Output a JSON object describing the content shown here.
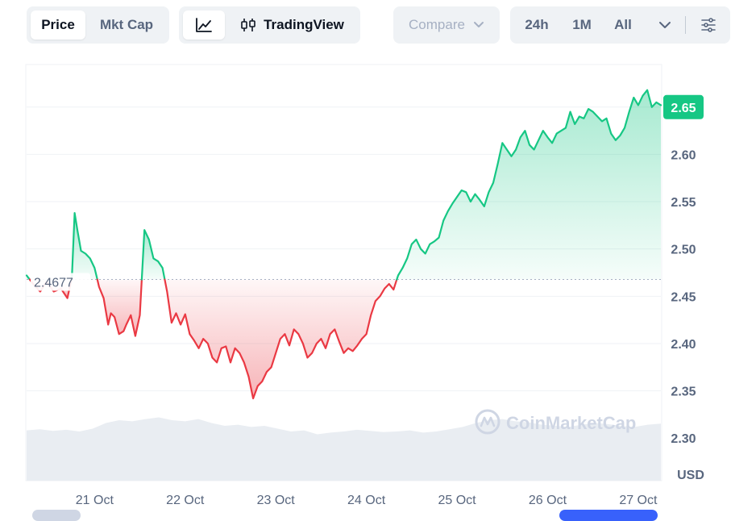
{
  "toolbar": {
    "view_tabs": {
      "price_label": "Price",
      "mktcap_label": "Mkt Cap",
      "active": "price"
    },
    "chart_type": {
      "line_icon": "line-chart-icon",
      "candle_icon": "candlestick-icon",
      "tradingview_label": "TradingView"
    },
    "compare": {
      "label": "Compare",
      "icon": "chevron-down-icon"
    },
    "ranges": {
      "r24h": "24h",
      "r1m": "1M",
      "all": "All",
      "more_icon": "chevron-down-icon",
      "settings_icon": "sliders-icon"
    }
  },
  "chart_data": {
    "type": "line",
    "title": "",
    "xlabel": "",
    "ylabel": "",
    "unit_label": "USD",
    "watermark": "CoinMarketCap",
    "ylim": [
      2.255,
      2.695
    ],
    "y_ticks": [
      "2.30",
      "2.35",
      "2.40",
      "2.45",
      "2.50",
      "2.55",
      "2.60"
    ],
    "x_ticks": [
      {
        "day": 0.75,
        "label": "21 Oct"
      },
      {
        "day": 1.75,
        "label": "22 Oct"
      },
      {
        "day": 2.75,
        "label": "23 Oct"
      },
      {
        "day": 3.75,
        "label": "24 Oct"
      },
      {
        "day": 4.75,
        "label": "25 Oct"
      },
      {
        "day": 5.75,
        "label": "26 Oct"
      },
      {
        "day": 6.75,
        "label": "27 Oct"
      }
    ],
    "reference": {
      "value": 2.4677,
      "label": "2.4677"
    },
    "current": {
      "value": 2.65,
      "label": "2.65"
    },
    "colors": {
      "up": "#16c784",
      "down": "#ea3943",
      "volume": "#e9edf2"
    },
    "days_span": 7,
    "series": [
      {
        "x": [
          0.0,
          0.08,
          0.15,
          0.22,
          0.3,
          0.38,
          0.45,
          0.5,
          0.53,
          0.56,
          0.6,
          0.65,
          0.7,
          0.75,
          0.8,
          0.85,
          0.9,
          0.93,
          0.97,
          1.02,
          1.07,
          1.1,
          1.15,
          1.2,
          1.25,
          1.3,
          1.35,
          1.4,
          1.45,
          1.5,
          1.55,
          1.6,
          1.65,
          1.7,
          1.75,
          1.8,
          1.85,
          1.9,
          1.95,
          2.0,
          2.05,
          2.1,
          2.15,
          2.2,
          2.25,
          2.3,
          2.35,
          2.4,
          2.45,
          2.5,
          2.55,
          2.6,
          2.65,
          2.7,
          2.75,
          2.8,
          2.85,
          2.9,
          2.95,
          3.0,
          3.05,
          3.1,
          3.15,
          3.2,
          3.25,
          3.3,
          3.35,
          3.4,
          3.45,
          3.5,
          3.55,
          3.6,
          3.65,
          3.7,
          3.75,
          3.8,
          3.85,
          3.9,
          3.95,
          4.0,
          4.05,
          4.1,
          4.15,
          4.2,
          4.25,
          4.3,
          4.35,
          4.4,
          4.45,
          4.5,
          4.55,
          4.6,
          4.65,
          4.7,
          4.75,
          4.8,
          4.85,
          4.9,
          4.95,
          5.0,
          5.05,
          5.1,
          5.15,
          5.2,
          5.25,
          5.3,
          5.35,
          5.4,
          5.45,
          5.5,
          5.55,
          5.6,
          5.65,
          5.7,
          5.75,
          5.8,
          5.85,
          5.9,
          5.95,
          6.0,
          6.05,
          6.1,
          6.15,
          6.2,
          6.25,
          6.3,
          6.35,
          6.4,
          6.45,
          6.5,
          6.55,
          6.6,
          6.65,
          6.7,
          6.75,
          6.8,
          6.85,
          6.9,
          6.95,
          7.0
        ],
        "y": [
          2.472,
          2.462,
          2.455,
          2.465,
          2.455,
          2.458,
          2.448,
          2.47,
          2.538,
          2.52,
          2.498,
          2.495,
          2.49,
          2.48,
          2.46,
          2.448,
          2.42,
          2.432,
          2.428,
          2.41,
          2.413,
          2.42,
          2.43,
          2.408,
          2.43,
          2.52,
          2.51,
          2.49,
          2.487,
          2.48,
          2.455,
          2.422,
          2.432,
          2.42,
          2.431,
          2.41,
          2.403,
          2.395,
          2.405,
          2.4,
          2.385,
          2.38,
          2.395,
          2.397,
          2.38,
          2.395,
          2.39,
          2.38,
          2.365,
          2.342,
          2.355,
          2.36,
          2.37,
          2.375,
          2.39,
          2.405,
          2.41,
          2.398,
          2.415,
          2.41,
          2.4,
          2.385,
          2.39,
          2.4,
          2.405,
          2.395,
          2.41,
          2.415,
          2.402,
          2.39,
          2.395,
          2.392,
          2.398,
          2.405,
          2.41,
          2.43,
          2.445,
          2.45,
          2.458,
          2.463,
          2.457,
          2.472,
          2.48,
          2.49,
          2.505,
          2.51,
          2.5,
          2.495,
          2.505,
          2.508,
          2.512,
          2.53,
          2.54,
          2.548,
          2.555,
          2.562,
          2.56,
          2.55,
          2.558,
          2.552,
          2.545,
          2.56,
          2.57,
          2.59,
          2.612,
          2.605,
          2.598,
          2.605,
          2.618,
          2.625,
          2.61,
          2.605,
          2.615,
          2.625,
          2.618,
          2.612,
          2.622,
          2.625,
          2.628,
          2.645,
          2.632,
          2.64,
          2.638,
          2.648,
          2.645,
          2.64,
          2.635,
          2.638,
          2.622,
          2.615,
          2.62,
          2.628,
          2.645,
          2.66,
          2.652,
          2.662,
          2.668,
          2.65,
          2.655,
          2.652
        ]
      }
    ],
    "volume": [
      0.32,
      0.34,
      0.31,
      0.33,
      0.3,
      0.35,
      0.45,
      0.5,
      0.48,
      0.52,
      0.55,
      0.5,
      0.48,
      0.52,
      0.45,
      0.4,
      0.42,
      0.38,
      0.4,
      0.35,
      0.3,
      0.32,
      0.25,
      0.28,
      0.3,
      0.33,
      0.31,
      0.29,
      0.3,
      0.32,
      0.28,
      0.3,
      0.34,
      0.38,
      0.45,
      0.5,
      0.52,
      0.48,
      0.46,
      0.42,
      0.4,
      0.38,
      0.42,
      0.45,
      0.43,
      0.4,
      0.38,
      0.42,
      0.44
    ]
  }
}
